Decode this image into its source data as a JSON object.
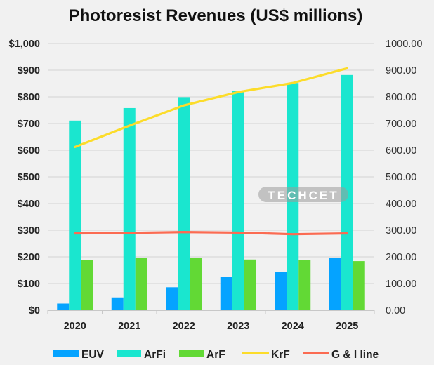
{
  "chart_data": {
    "type": "bar",
    "title": "Photoresist Revenues (US$ millions)",
    "xlabel": "",
    "ylabel": "",
    "categories": [
      "2020",
      "2021",
      "2022",
      "2023",
      "2024",
      "2025"
    ],
    "ylim": [
      0,
      1000
    ],
    "y2lim": [
      0,
      1000
    ],
    "grid": true,
    "legend_position": "bottom",
    "y_ticks_left": [
      "$0",
      "$100",
      "$200",
      "$300",
      "$400",
      "$500",
      "$600",
      "$700",
      "$800",
      "$900",
      "$1,000"
    ],
    "y_ticks_right": [
      "0.00",
      "100.00",
      "200.00",
      "300.00",
      "400.00",
      "500.00",
      "600.00",
      "700.00",
      "800.00",
      "900.00",
      "1000.00"
    ],
    "series": [
      {
        "name": "EUV",
        "kind": "bar",
        "axis": "left",
        "color": "#05a3ff",
        "values": [
          25,
          48,
          86,
          124,
          144,
          195
        ]
      },
      {
        "name": "ArFi",
        "kind": "bar",
        "axis": "left",
        "color": "#1ae6cf",
        "values": [
          711,
          758,
          799,
          823,
          852,
          882
        ]
      },
      {
        "name": "ArF",
        "kind": "bar",
        "axis": "left",
        "color": "#62d935",
        "values": [
          189,
          195,
          195,
          190,
          188,
          184
        ]
      },
      {
        "name": "KrF",
        "kind": "line",
        "axis": "right",
        "color": "#fcdc2a",
        "values": [
          612,
          692,
          768,
          818,
          852,
          907
        ]
      },
      {
        "name": "G & I line",
        "kind": "line",
        "axis": "right",
        "color": "#fb6b52",
        "values": [
          288,
          290,
          293,
          291,
          285,
          288
        ]
      }
    ],
    "watermark": "TECHCET"
  }
}
